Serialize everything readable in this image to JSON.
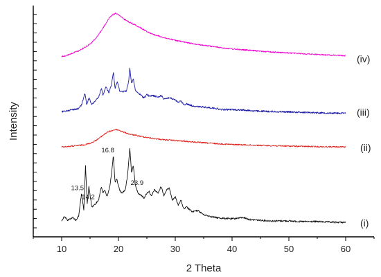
{
  "chart_data": {
    "type": "line",
    "xlabel": "2 Theta",
    "ylabel": "Intensity",
    "xlim": [
      5,
      65
    ],
    "xticks": [
      10,
      20,
      30,
      40,
      50,
      60
    ],
    "grid": false,
    "series": [
      {
        "name": "(i)",
        "color": "#111111",
        "points": [
          [
            10,
            0.05
          ],
          [
            10.5,
            0.12
          ],
          [
            11,
            0.06
          ],
          [
            12,
            0.1
          ],
          [
            12.5,
            0.06
          ],
          [
            13,
            0.12
          ],
          [
            13.5,
            0.45
          ],
          [
            13.9,
            0.2
          ],
          [
            14.2,
            0.85
          ],
          [
            14.5,
            0.3
          ],
          [
            14.8,
            0.55
          ],
          [
            15.3,
            0.25
          ],
          [
            16,
            0.3
          ],
          [
            16.5,
            0.35
          ],
          [
            17,
            0.55
          ],
          [
            17.3,
            0.45
          ],
          [
            17.6,
            0.5
          ],
          [
            18,
            0.4
          ],
          [
            18.5,
            0.55
          ],
          [
            18.8,
            0.75
          ],
          [
            19.1,
            1.0
          ],
          [
            19.4,
            0.6
          ],
          [
            19.7,
            0.65
          ],
          [
            20.2,
            0.5
          ],
          [
            20.6,
            0.45
          ],
          [
            21.2,
            0.5
          ],
          [
            21.6,
            0.7
          ],
          [
            22.0,
            1.1
          ],
          [
            22.3,
            0.75
          ],
          [
            22.6,
            0.85
          ],
          [
            23.0,
            0.55
          ],
          [
            23.5,
            0.45
          ],
          [
            24,
            0.42
          ],
          [
            24.5,
            0.38
          ],
          [
            25,
            0.45
          ],
          [
            25.4,
            0.48
          ],
          [
            25.8,
            0.4
          ],
          [
            26.3,
            0.5
          ],
          [
            27,
            0.45
          ],
          [
            27.5,
            0.55
          ],
          [
            28,
            0.42
          ],
          [
            28.5,
            0.5
          ],
          [
            29,
            0.52
          ],
          [
            29.5,
            0.35
          ],
          [
            30,
            0.4
          ],
          [
            30.5,
            0.28
          ],
          [
            31,
            0.35
          ],
          [
            31.5,
            0.22
          ],
          [
            32,
            0.25
          ],
          [
            33,
            0.18
          ],
          [
            34,
            0.2
          ],
          [
            35,
            0.14
          ],
          [
            36,
            0.12
          ],
          [
            37,
            0.1
          ],
          [
            38,
            0.09
          ],
          [
            40,
            0.08
          ],
          [
            42,
            0.1
          ],
          [
            43,
            0.07
          ],
          [
            45,
            0.06
          ],
          [
            47,
            0.05
          ],
          [
            50,
            0.05
          ],
          [
            52,
            0.04
          ],
          [
            55,
            0.04
          ],
          [
            58,
            0.03
          ],
          [
            60,
            0.03
          ]
        ]
      },
      {
        "name": "(ii)",
        "color": "#e0201a",
        "points": [
          [
            10,
            0.02
          ],
          [
            12,
            0.05
          ],
          [
            14,
            0.1
          ],
          [
            15,
            0.15
          ],
          [
            16,
            0.25
          ],
          [
            17,
            0.4
          ],
          [
            18,
            0.55
          ],
          [
            19,
            0.62
          ],
          [
            19.5,
            0.65
          ],
          [
            20,
            0.63
          ],
          [
            21,
            0.55
          ],
          [
            22,
            0.48
          ],
          [
            24,
            0.4
          ],
          [
            26,
            0.33
          ],
          [
            28,
            0.28
          ],
          [
            30,
            0.25
          ],
          [
            32,
            0.22
          ],
          [
            35,
            0.17
          ],
          [
            38,
            0.13
          ],
          [
            40,
            0.11
          ],
          [
            43,
            0.09
          ],
          [
            46,
            0.07
          ],
          [
            50,
            0.05
          ],
          [
            55,
            0.03
          ],
          [
            60,
            0.02
          ]
        ]
      },
      {
        "name": "(iii)",
        "color": "#1c1ca6",
        "points": [
          [
            10,
            0.05
          ],
          [
            11,
            0.08
          ],
          [
            12,
            0.1
          ],
          [
            13,
            0.12
          ],
          [
            13.5,
            0.2
          ],
          [
            14.1,
            0.45
          ],
          [
            14.4,
            0.2
          ],
          [
            14.8,
            0.35
          ],
          [
            15.3,
            0.2
          ],
          [
            16,
            0.3
          ],
          [
            16.5,
            0.35
          ],
          [
            17,
            0.55
          ],
          [
            17.3,
            0.4
          ],
          [
            17.8,
            0.6
          ],
          [
            18.3,
            0.45
          ],
          [
            18.8,
            0.65
          ],
          [
            19.1,
            0.9
          ],
          [
            19.4,
            0.55
          ],
          [
            19.8,
            0.7
          ],
          [
            20.2,
            0.5
          ],
          [
            20.8,
            0.48
          ],
          [
            21.4,
            0.5
          ],
          [
            21.8,
            0.7
          ],
          [
            22.0,
            1.0
          ],
          [
            22.3,
            0.65
          ],
          [
            22.6,
            0.75
          ],
          [
            23,
            0.5
          ],
          [
            23.5,
            0.45
          ],
          [
            24,
            0.4
          ],
          [
            24.5,
            0.35
          ],
          [
            25,
            0.42
          ],
          [
            25.5,
            0.38
          ],
          [
            26,
            0.4
          ],
          [
            27,
            0.36
          ],
          [
            27.5,
            0.4
          ],
          [
            28,
            0.33
          ],
          [
            29,
            0.35
          ],
          [
            30,
            0.3
          ],
          [
            30.5,
            0.25
          ],
          [
            31,
            0.28
          ],
          [
            31.5,
            0.2
          ],
          [
            32,
            0.22
          ],
          [
            33,
            0.18
          ],
          [
            34,
            0.16
          ],
          [
            35,
            0.15
          ],
          [
            37,
            0.13
          ],
          [
            38,
            0.1
          ],
          [
            40,
            0.1
          ],
          [
            42,
            0.09
          ],
          [
            44,
            0.07
          ],
          [
            46,
            0.06
          ],
          [
            50,
            0.05
          ],
          [
            53,
            0.04
          ],
          [
            56,
            0.03
          ],
          [
            60,
            0.02
          ]
        ]
      },
      {
        "name": "(iv)",
        "color": "#f000d0",
        "points": [
          [
            10,
            0.02
          ],
          [
            11,
            0.05
          ],
          [
            12,
            0.1
          ],
          [
            13,
            0.15
          ],
          [
            14,
            0.22
          ],
          [
            15,
            0.3
          ],
          [
            16,
            0.42
          ],
          [
            17,
            0.6
          ],
          [
            18,
            0.8
          ],
          [
            18.5,
            0.9
          ],
          [
            19,
            0.95
          ],
          [
            19.5,
            0.98
          ],
          [
            20,
            0.95
          ],
          [
            21,
            0.85
          ],
          [
            22,
            0.78
          ],
          [
            23,
            0.72
          ],
          [
            24,
            0.65
          ],
          [
            25,
            0.58
          ],
          [
            26,
            0.52
          ],
          [
            27,
            0.48
          ],
          [
            28,
            0.44
          ],
          [
            30,
            0.38
          ],
          [
            32,
            0.33
          ],
          [
            35,
            0.27
          ],
          [
            38,
            0.22
          ],
          [
            40,
            0.19
          ],
          [
            43,
            0.16
          ],
          [
            46,
            0.13
          ],
          [
            50,
            0.1
          ],
          [
            53,
            0.08
          ],
          [
            56,
            0.06
          ],
          [
            60,
            0.04
          ]
        ]
      }
    ],
    "annotations": [
      {
        "text": "13.5",
        "x": 14.0,
        "series": "(i)"
      },
      {
        "text": "14.2",
        "x": 14.7,
        "series": "(i)"
      },
      {
        "text": "16.8",
        "x": 19.1,
        "series": "(i)"
      },
      {
        "text": "23.9",
        "x": 22.3,
        "series": "(i)"
      }
    ]
  }
}
